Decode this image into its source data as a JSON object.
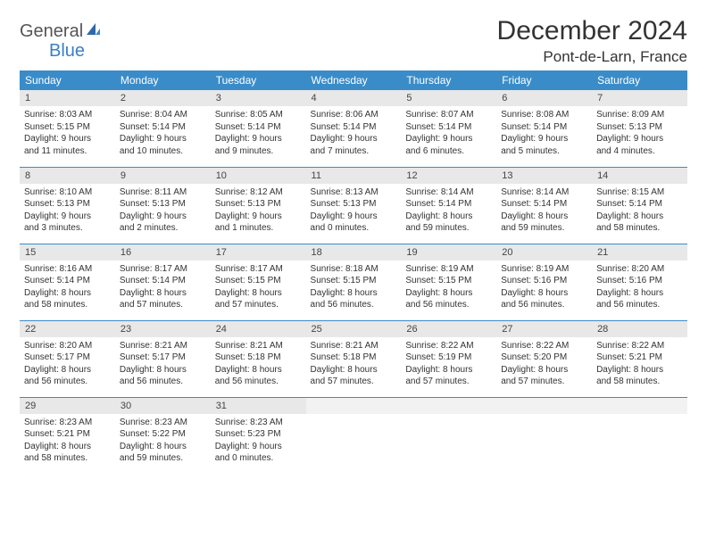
{
  "logo": {
    "part1": "General",
    "part2": "Blue"
  },
  "title": "December 2024",
  "location": "Pont-de-Larn, France",
  "colors": {
    "header_bg": "#3a8cc9",
    "header_fg": "#ffffff",
    "daynum_bg": "#e8e8e8",
    "border": "#3a8cc9",
    "logo_blue": "#3a7fc4",
    "logo_gray": "#555555"
  },
  "day_names": [
    "Sunday",
    "Monday",
    "Tuesday",
    "Wednesday",
    "Thursday",
    "Friday",
    "Saturday"
  ],
  "weeks": [
    [
      {
        "n": "1",
        "sr": "8:03 AM",
        "ss": "5:15 PM",
        "dh": "9",
        "dm": "11"
      },
      {
        "n": "2",
        "sr": "8:04 AM",
        "ss": "5:14 PM",
        "dh": "9",
        "dm": "10"
      },
      {
        "n": "3",
        "sr": "8:05 AM",
        "ss": "5:14 PM",
        "dh": "9",
        "dm": "9"
      },
      {
        "n": "4",
        "sr": "8:06 AM",
        "ss": "5:14 PM",
        "dh": "9",
        "dm": "7"
      },
      {
        "n": "5",
        "sr": "8:07 AM",
        "ss": "5:14 PM",
        "dh": "9",
        "dm": "6"
      },
      {
        "n": "6",
        "sr": "8:08 AM",
        "ss": "5:14 PM",
        "dh": "9",
        "dm": "5"
      },
      {
        "n": "7",
        "sr": "8:09 AM",
        "ss": "5:13 PM",
        "dh": "9",
        "dm": "4"
      }
    ],
    [
      {
        "n": "8",
        "sr": "8:10 AM",
        "ss": "5:13 PM",
        "dh": "9",
        "dm": "3"
      },
      {
        "n": "9",
        "sr": "8:11 AM",
        "ss": "5:13 PM",
        "dh": "9",
        "dm": "2"
      },
      {
        "n": "10",
        "sr": "8:12 AM",
        "ss": "5:13 PM",
        "dh": "9",
        "dm": "1"
      },
      {
        "n": "11",
        "sr": "8:13 AM",
        "ss": "5:13 PM",
        "dh": "9",
        "dm": "0"
      },
      {
        "n": "12",
        "sr": "8:14 AM",
        "ss": "5:14 PM",
        "dh": "8",
        "dm": "59"
      },
      {
        "n": "13",
        "sr": "8:14 AM",
        "ss": "5:14 PM",
        "dh": "8",
        "dm": "59"
      },
      {
        "n": "14",
        "sr": "8:15 AM",
        "ss": "5:14 PM",
        "dh": "8",
        "dm": "58"
      }
    ],
    [
      {
        "n": "15",
        "sr": "8:16 AM",
        "ss": "5:14 PM",
        "dh": "8",
        "dm": "58"
      },
      {
        "n": "16",
        "sr": "8:17 AM",
        "ss": "5:14 PM",
        "dh": "8",
        "dm": "57"
      },
      {
        "n": "17",
        "sr": "8:17 AM",
        "ss": "5:15 PM",
        "dh": "8",
        "dm": "57"
      },
      {
        "n": "18",
        "sr": "8:18 AM",
        "ss": "5:15 PM",
        "dh": "8",
        "dm": "56"
      },
      {
        "n": "19",
        "sr": "8:19 AM",
        "ss": "5:15 PM",
        "dh": "8",
        "dm": "56"
      },
      {
        "n": "20",
        "sr": "8:19 AM",
        "ss": "5:16 PM",
        "dh": "8",
        "dm": "56"
      },
      {
        "n": "21",
        "sr": "8:20 AM",
        "ss": "5:16 PM",
        "dh": "8",
        "dm": "56"
      }
    ],
    [
      {
        "n": "22",
        "sr": "8:20 AM",
        "ss": "5:17 PM",
        "dh": "8",
        "dm": "56"
      },
      {
        "n": "23",
        "sr": "8:21 AM",
        "ss": "5:17 PM",
        "dh": "8",
        "dm": "56"
      },
      {
        "n": "24",
        "sr": "8:21 AM",
        "ss": "5:18 PM",
        "dh": "8",
        "dm": "56"
      },
      {
        "n": "25",
        "sr": "8:21 AM",
        "ss": "5:18 PM",
        "dh": "8",
        "dm": "57"
      },
      {
        "n": "26",
        "sr": "8:22 AM",
        "ss": "5:19 PM",
        "dh": "8",
        "dm": "57"
      },
      {
        "n": "27",
        "sr": "8:22 AM",
        "ss": "5:20 PM",
        "dh": "8",
        "dm": "57"
      },
      {
        "n": "28",
        "sr": "8:22 AM",
        "ss": "5:21 PM",
        "dh": "8",
        "dm": "58"
      }
    ],
    [
      {
        "n": "29",
        "sr": "8:23 AM",
        "ss": "5:21 PM",
        "dh": "8",
        "dm": "58"
      },
      {
        "n": "30",
        "sr": "8:23 AM",
        "ss": "5:22 PM",
        "dh": "8",
        "dm": "59"
      },
      {
        "n": "31",
        "sr": "8:23 AM",
        "ss": "5:23 PM",
        "dh": "9",
        "dm": "0"
      },
      null,
      null,
      null,
      null
    ]
  ],
  "labels": {
    "sunrise": "Sunrise:",
    "sunset": "Sunset:",
    "daylight_prefix": "Daylight:",
    "hours_word": "hours",
    "and_word": "and",
    "minutes_word": "minutes."
  }
}
